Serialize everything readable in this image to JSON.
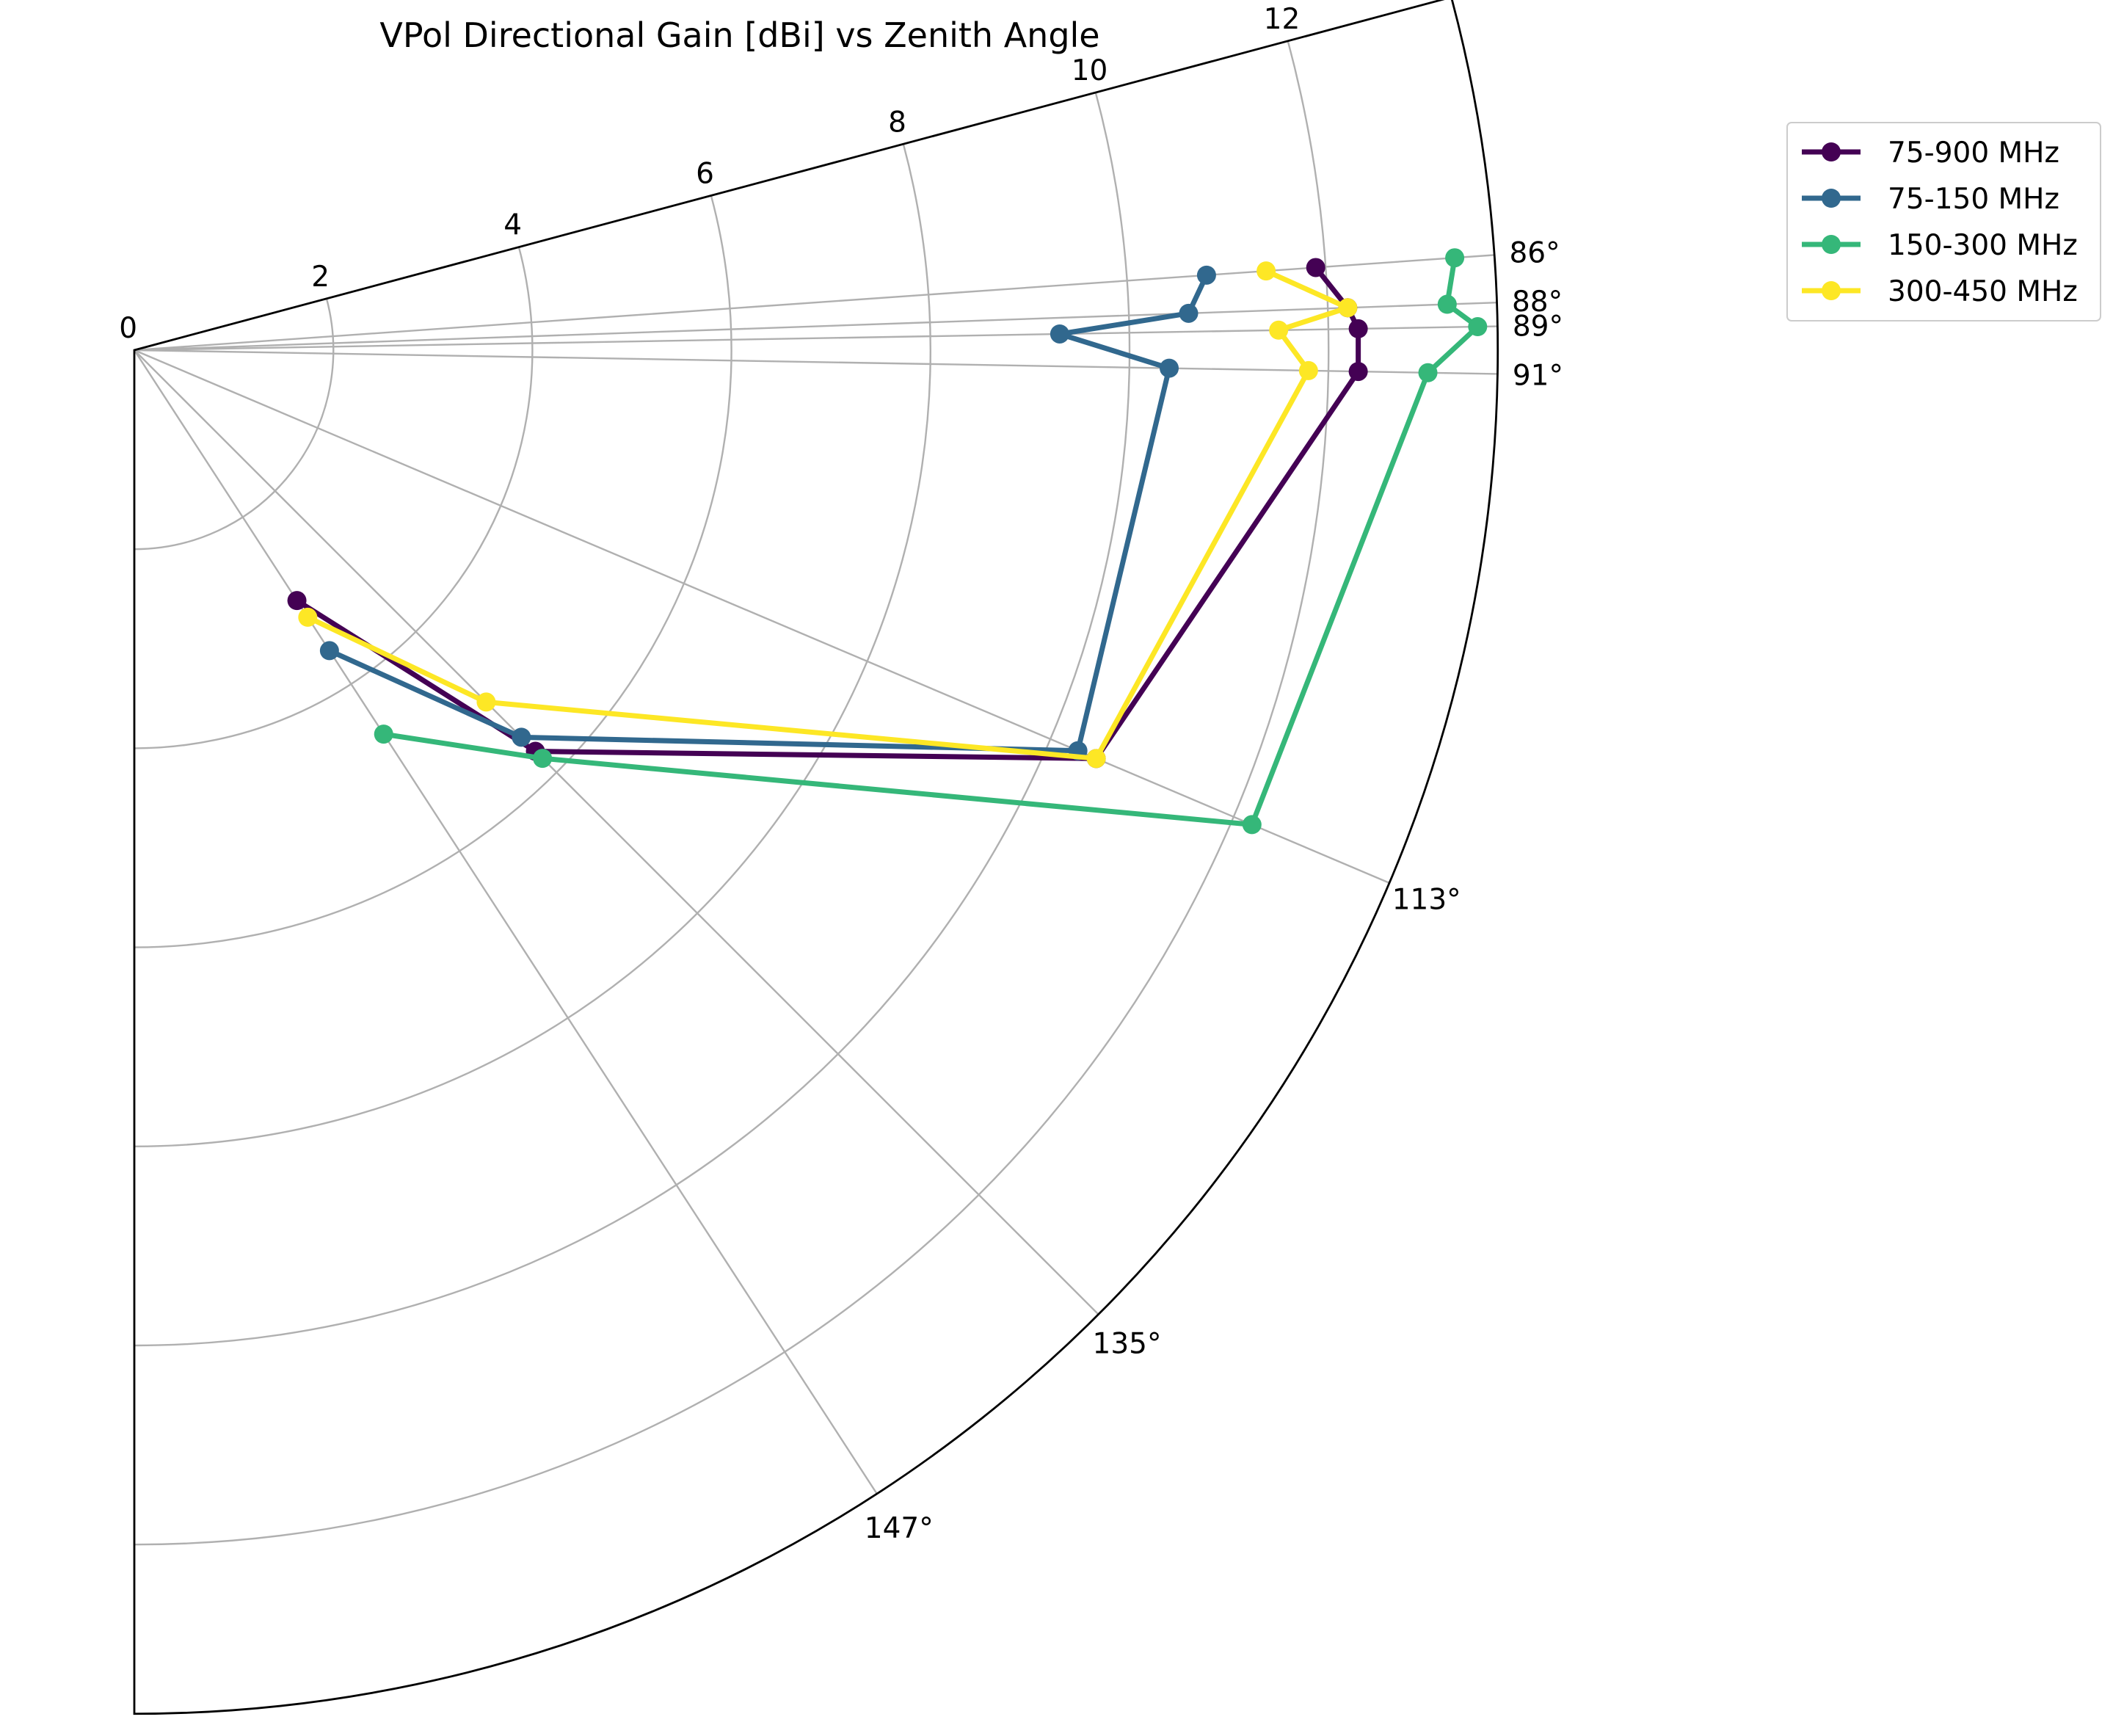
{
  "chart_data": {
    "type": "polar-line",
    "title": "VPol Directional Gain [dBi] vs Zenith Angle",
    "r_ticks": [
      "0",
      "2",
      "4",
      "6",
      "8",
      "10",
      "12"
    ],
    "r_tick_values": [
      0,
      2,
      4,
      6,
      8,
      10,
      12
    ],
    "rlim": [
      0,
      13.7
    ],
    "theta_ticks": [
      "86°",
      "88°",
      "89°",
      "91°",
      "113°",
      "135°",
      "147°"
    ],
    "theta_tick_values": [
      86,
      88,
      89,
      91,
      113,
      135,
      147
    ],
    "theta_range_deg": [
      75,
      180
    ],
    "theta_zero": "east",
    "theta_direction": "clockwise",
    "grid": true,
    "legend_position": "outside upper right",
    "series": [
      {
        "name": "75-900 MHz",
        "color": "#440154",
        "theta": [
          86,
          88,
          89,
          91,
          113,
          135,
          147
        ],
        "r": [
          11.9,
          12.2,
          12.3,
          12.3,
          10.5,
          5.7,
          3.0
        ]
      },
      {
        "name": "75-150 MHz",
        "color": "#31688e",
        "theta": [
          86,
          88,
          89,
          91,
          113,
          135,
          147
        ],
        "r": [
          10.8,
          10.6,
          9.3,
          10.4,
          10.3,
          5.5,
          3.6
        ]
      },
      {
        "name": "150-300 MHz",
        "color": "#35b779",
        "theta": [
          86,
          88,
          89,
          91,
          113,
          135,
          147
        ],
        "r": [
          13.3,
          13.2,
          13.5,
          13.0,
          12.2,
          5.8,
          4.6
        ]
      },
      {
        "name": "300-450 MHz",
        "color": "#fde725",
        "theta": [
          86,
          88,
          89,
          91,
          113,
          135,
          147
        ],
        "r": [
          11.4,
          12.2,
          11.5,
          11.8,
          10.5,
          5.0,
          3.2
        ]
      }
    ]
  }
}
